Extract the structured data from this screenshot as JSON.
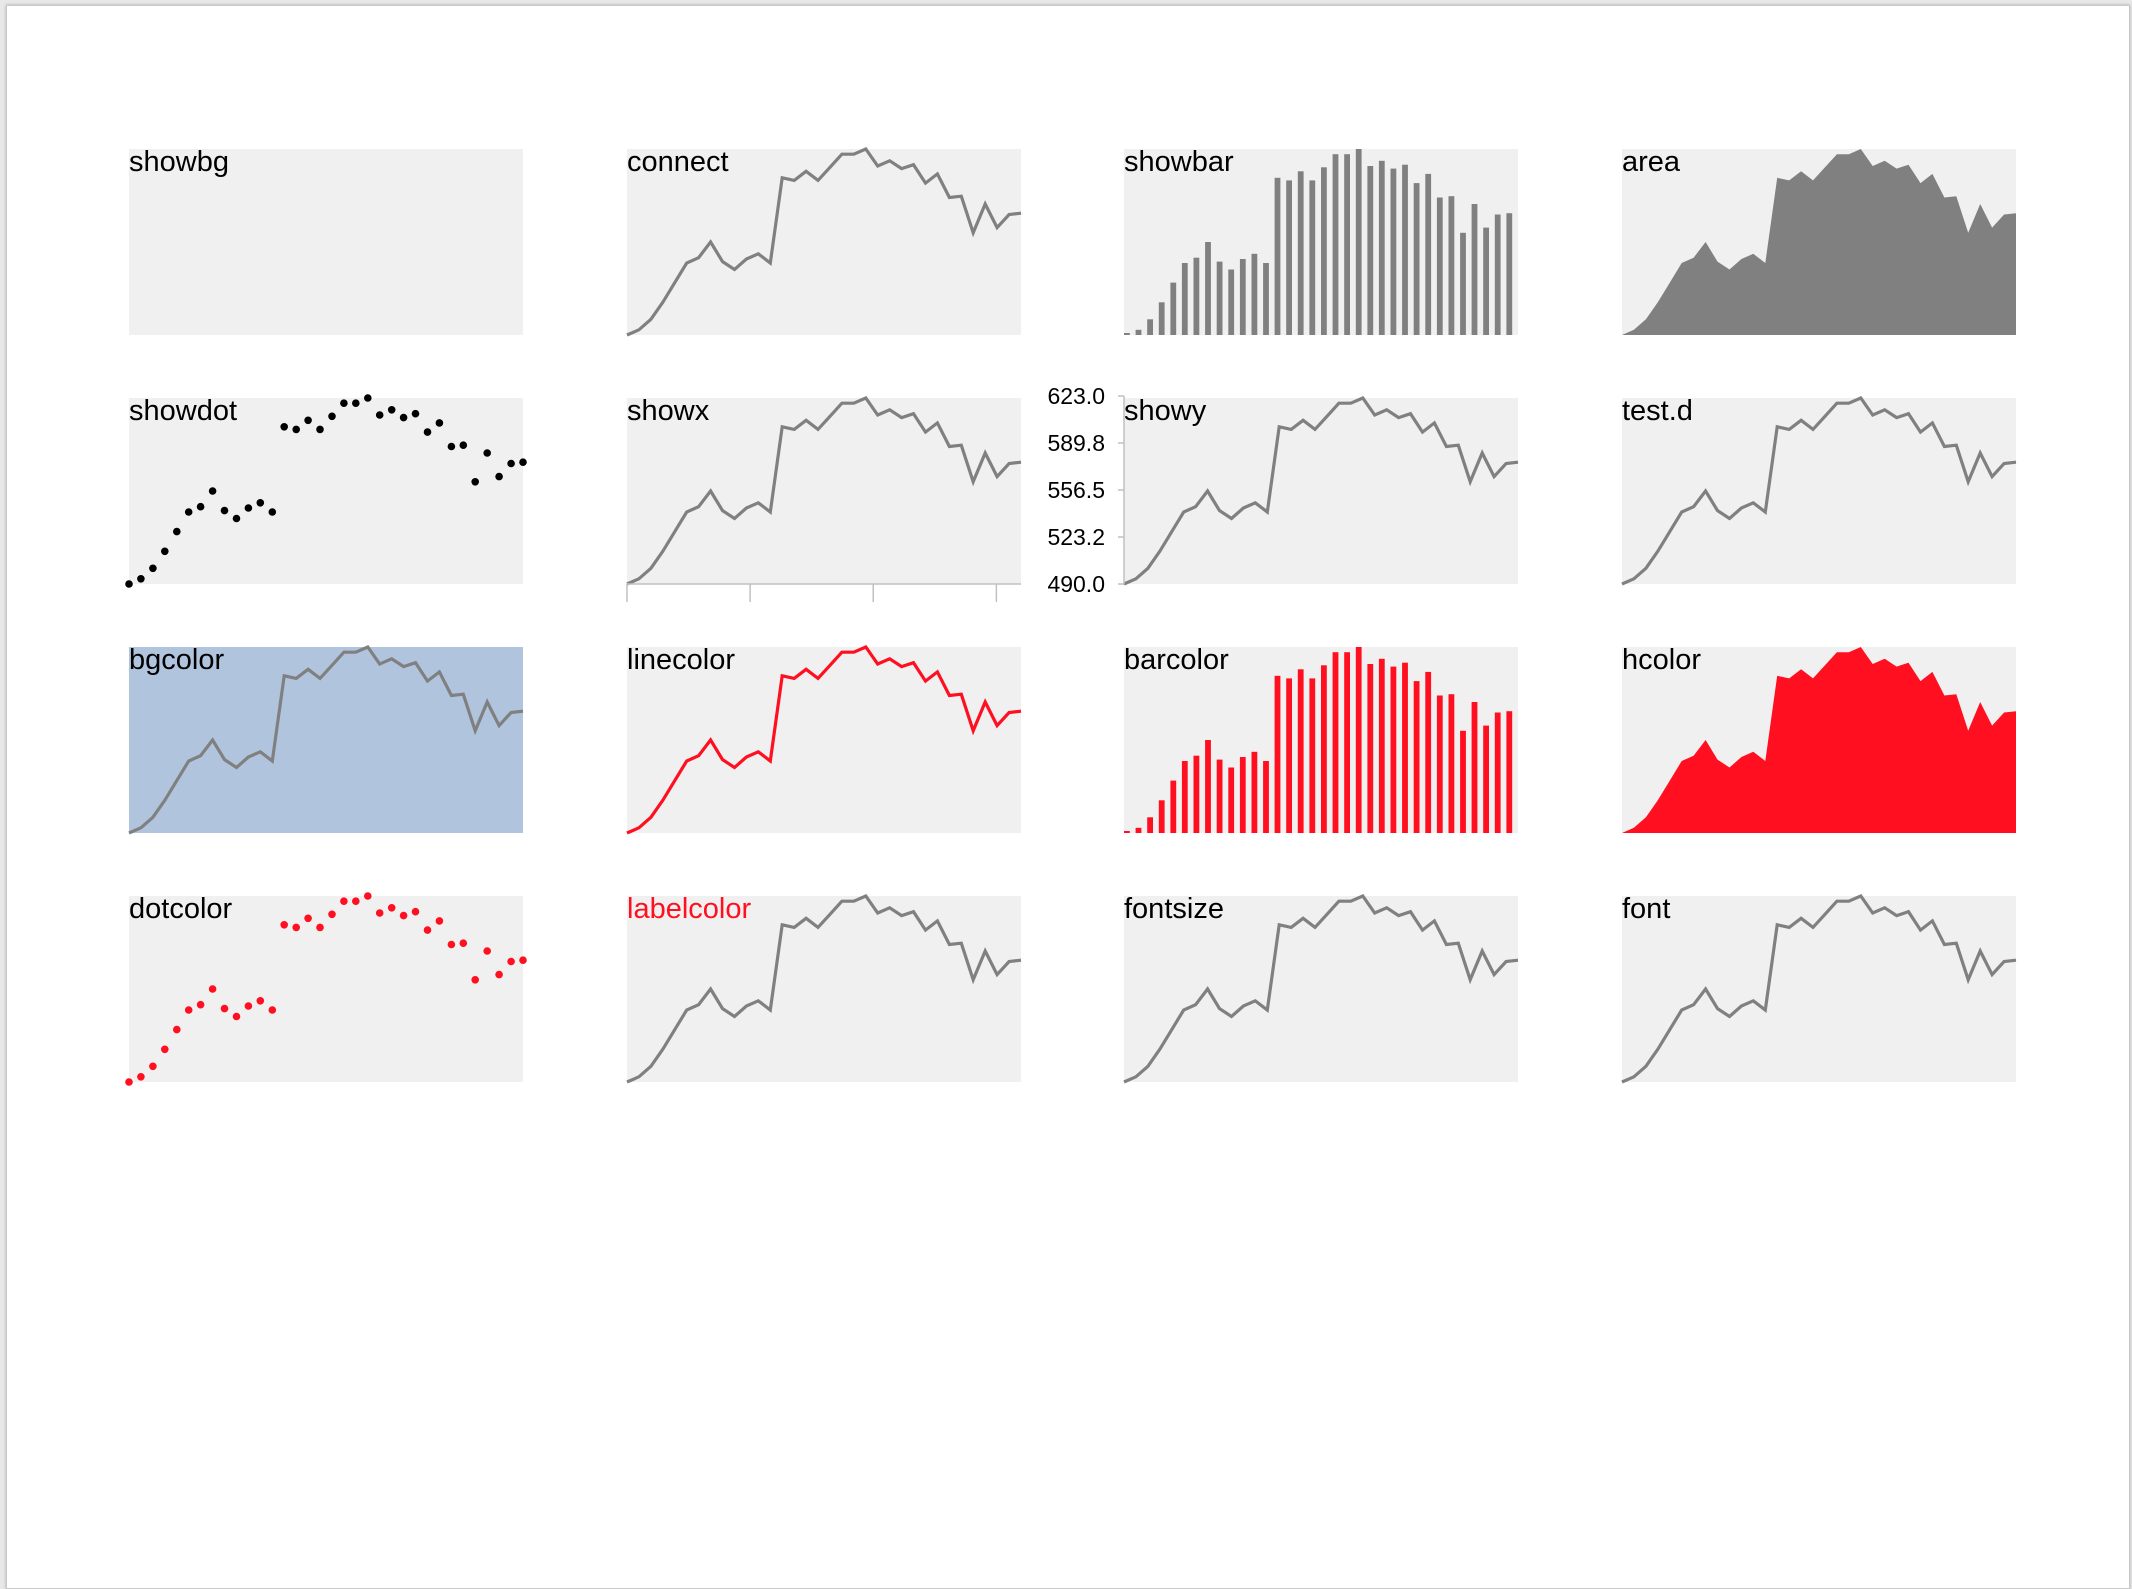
{
  "chart_data": {
    "type": "line",
    "values": [
      490,
      494,
      502,
      515,
      530,
      545,
      549,
      561,
      546,
      540,
      548,
      552,
      545,
      610,
      608,
      615,
      608,
      618,
      628,
      628,
      632,
      619,
      623,
      617,
      620,
      606,
      613,
      595,
      596,
      568,
      590,
      572,
      582,
      583
    ],
    "ylim": [
      490,
      632
    ],
    "y_ticks": [
      "623.0",
      "589.8",
      "556.5",
      "523.2",
      "490.0"
    ],
    "colors": {
      "panel_bg": "#f0f0f0",
      "default_series": "#808080",
      "dot": "#000000",
      "highlight": "#ff0f1f",
      "bgcolor": "#b0c4de"
    },
    "panels": [
      {
        "id": "showbg",
        "label": "showbg",
        "show": "none"
      },
      {
        "id": "connect",
        "label": "connect",
        "show": "line"
      },
      {
        "id": "showbar",
        "label": "showbar",
        "show": "bar"
      },
      {
        "id": "area",
        "label": "area",
        "show": "area"
      },
      {
        "id": "showdot",
        "label": "showdot",
        "show": "dot"
      },
      {
        "id": "showx",
        "label": "showx",
        "show": "line",
        "xaxis": true
      },
      {
        "id": "showy",
        "label": "showy",
        "show": "line",
        "yaxis": true
      },
      {
        "id": "test-d",
        "label": "test.d",
        "show": "line"
      },
      {
        "id": "bgcolor",
        "label": "bgcolor",
        "show": "line",
        "bg": "#b0c4de"
      },
      {
        "id": "linecolor",
        "label": "linecolor",
        "show": "line",
        "color": "#ff0f1f"
      },
      {
        "id": "barcolor",
        "label": "barcolor",
        "show": "bar",
        "color": "#ff0f1f"
      },
      {
        "id": "hcolor",
        "label": "hcolor",
        "show": "area",
        "color": "#ff0f1f"
      },
      {
        "id": "dotcolor",
        "label": "dotcolor",
        "show": "dot",
        "color": "#ff0f1f"
      },
      {
        "id": "labelcolor",
        "label": "labelcolor",
        "show": "line",
        "labelColor": "#ff0f1f"
      },
      {
        "id": "fontsize",
        "label": "fontsize",
        "show": "line"
      },
      {
        "id": "font",
        "label": "font",
        "show": "line",
        "mono": true
      }
    ]
  }
}
